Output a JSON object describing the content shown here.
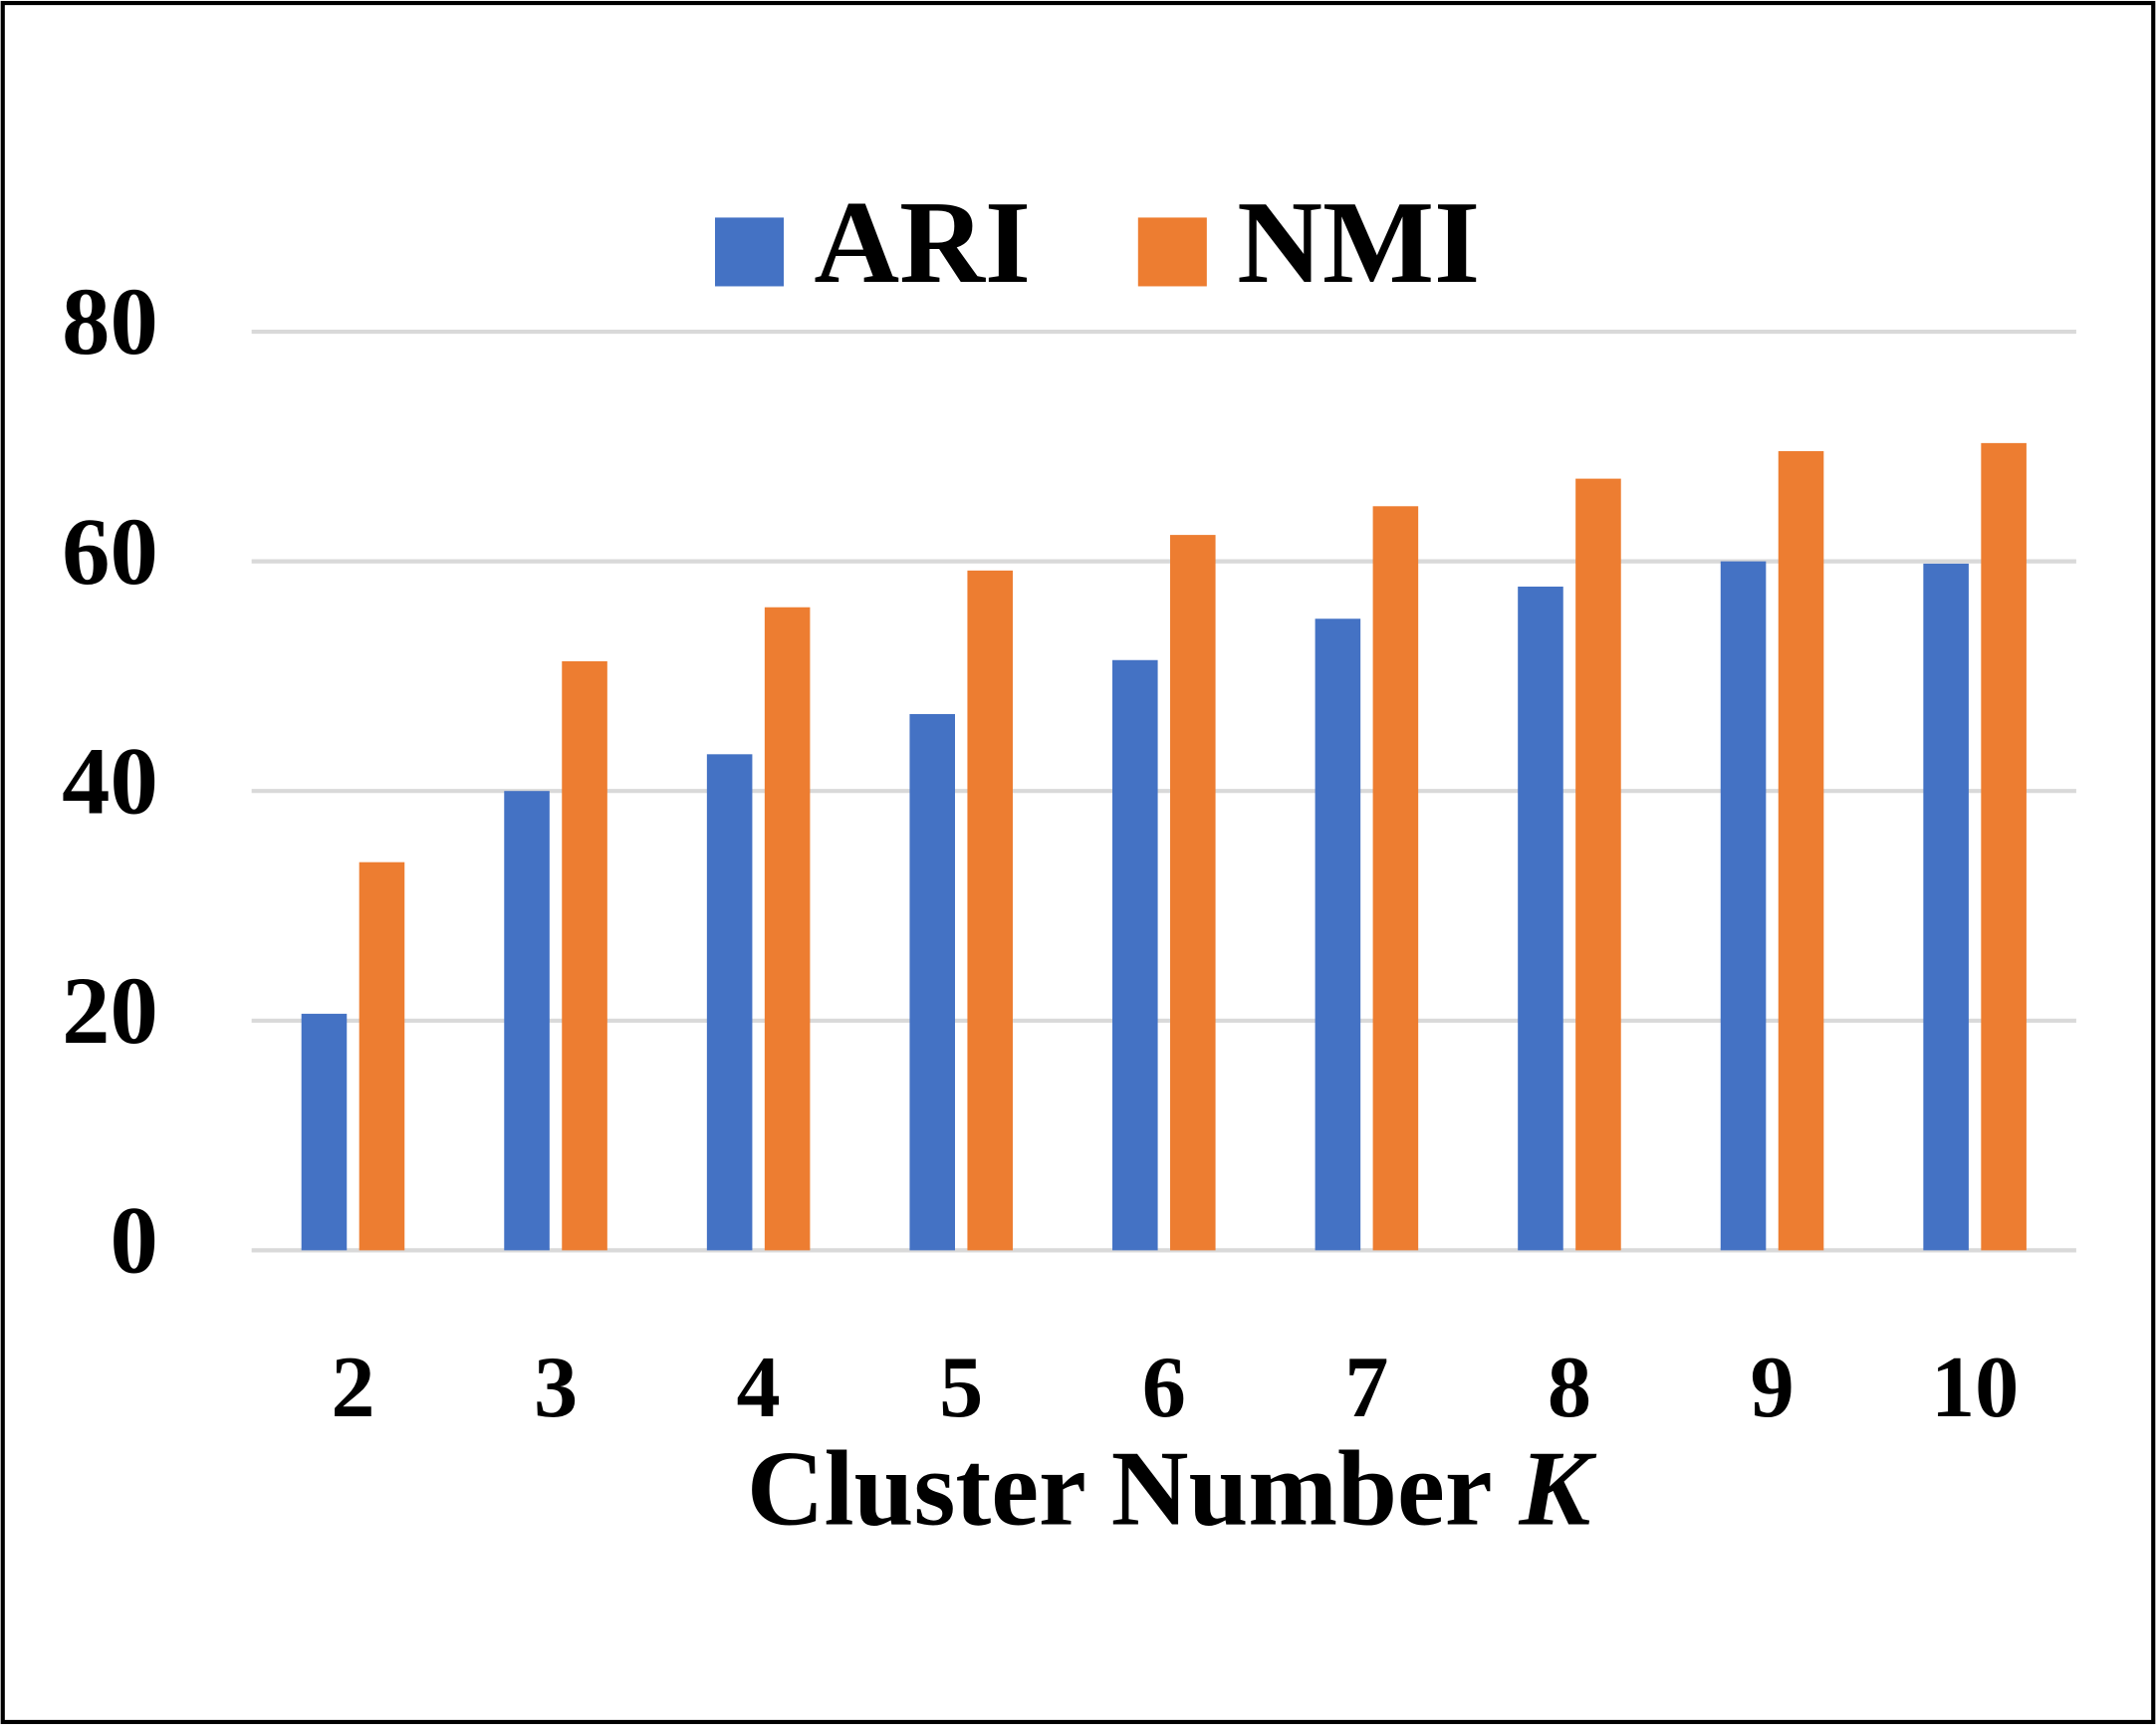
{
  "chart_data": {
    "type": "bar",
    "x_label": {
      "text": "Cluster Number",
      "variable": "K"
    },
    "categories": [
      "2",
      "3",
      "4",
      "5",
      "6",
      "7",
      "8",
      "9",
      "10"
    ],
    "series": [
      {
        "name": "ARI",
        "color": "#4472c4",
        "values": [
          20.6,
          40.0,
          43.2,
          46.7,
          51.4,
          55.0,
          57.8,
          60.0,
          59.8
        ]
      },
      {
        "name": "NMI",
        "color": "#ed7d31",
        "values": [
          33.8,
          51.3,
          56.0,
          59.2,
          62.3,
          64.8,
          67.2,
          69.6,
          70.3
        ]
      }
    ],
    "ylim": [
      0,
      80
    ],
    "yticks": [
      0,
      20,
      40,
      60,
      80
    ],
    "grid": true,
    "legend": "top"
  }
}
